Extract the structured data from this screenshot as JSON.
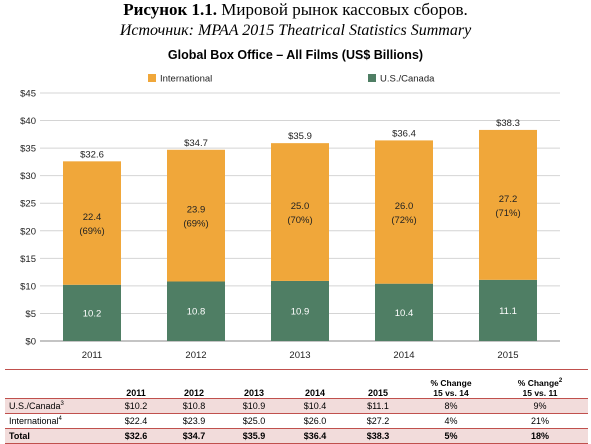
{
  "caption": {
    "figure_label": "Рисунок 1.1.",
    "figure_text": "Мировой рынок кассовых сборов.",
    "source": "Источник: MPAA 2015 Theatrical Statistics Summary"
  },
  "colors": {
    "international": "#F0A73A",
    "us_canada": "#4F7E64",
    "grid": "#d4d4d4",
    "table_accent": "#c0504d"
  },
  "chart_data": {
    "type": "bar",
    "stacked": true,
    "title": "Global Box Office – All Films (US$ Billions)",
    "categories": [
      "2011",
      "2012",
      "2013",
      "2014",
      "2015"
    ],
    "series": [
      {
        "name": "U.S./Canada",
        "values": [
          10.2,
          10.8,
          10.9,
          10.4,
          11.1
        ],
        "labels": [
          "10.2",
          "10.8",
          "10.9",
          "10.4",
          "11.1"
        ]
      },
      {
        "name": "International",
        "values": [
          22.4,
          23.9,
          25.0,
          26.0,
          27.2
        ],
        "labels": [
          "22.4",
          "23.9",
          "25.0",
          "26.0",
          "27.2"
        ],
        "share_labels": [
          "(69%)",
          "(69%)",
          "(70%)",
          "(72%)",
          "(71%)"
        ]
      }
    ],
    "totals": [
      "$32.6",
      "$34.7",
      "$35.9",
      "$36.4",
      "$38.3"
    ],
    "ylim": [
      0,
      45
    ],
    "yticks": [
      0,
      5,
      10,
      15,
      20,
      25,
      30,
      35,
      40,
      45
    ],
    "ytick_labels": [
      "$0",
      "$5",
      "$10",
      "$15",
      "$20",
      "$25",
      "$30",
      "$35",
      "$40",
      "$45"
    ],
    "legend": [
      "International",
      "U.S./Canada"
    ],
    "legend_position": "top",
    "grid": true
  },
  "table": {
    "headers": [
      "",
      "2011",
      "2012",
      "2013",
      "2014",
      "2015"
    ],
    "pct1": {
      "line1": "% Change",
      "line2": "15 vs. 14"
    },
    "pct2": {
      "line1": "% Change",
      "sup": "2",
      "line2": "15 vs. 11"
    },
    "rows": [
      {
        "label": "U.S./Canada",
        "sup": "3",
        "cells": [
          "$10.2",
          "$10.8",
          "$10.9",
          "$10.4",
          "$11.1",
          "8%",
          "9%"
        ]
      },
      {
        "label": "International",
        "sup": "4",
        "cells": [
          "$22.4",
          "$23.9",
          "$25.0",
          "$26.0",
          "$27.2",
          "4%",
          "21%"
        ]
      },
      {
        "label": "Total",
        "sup": "",
        "cells": [
          "$32.6",
          "$34.7",
          "$35.9",
          "$36.4",
          "$38.3",
          "5%",
          "18%"
        ]
      }
    ]
  }
}
